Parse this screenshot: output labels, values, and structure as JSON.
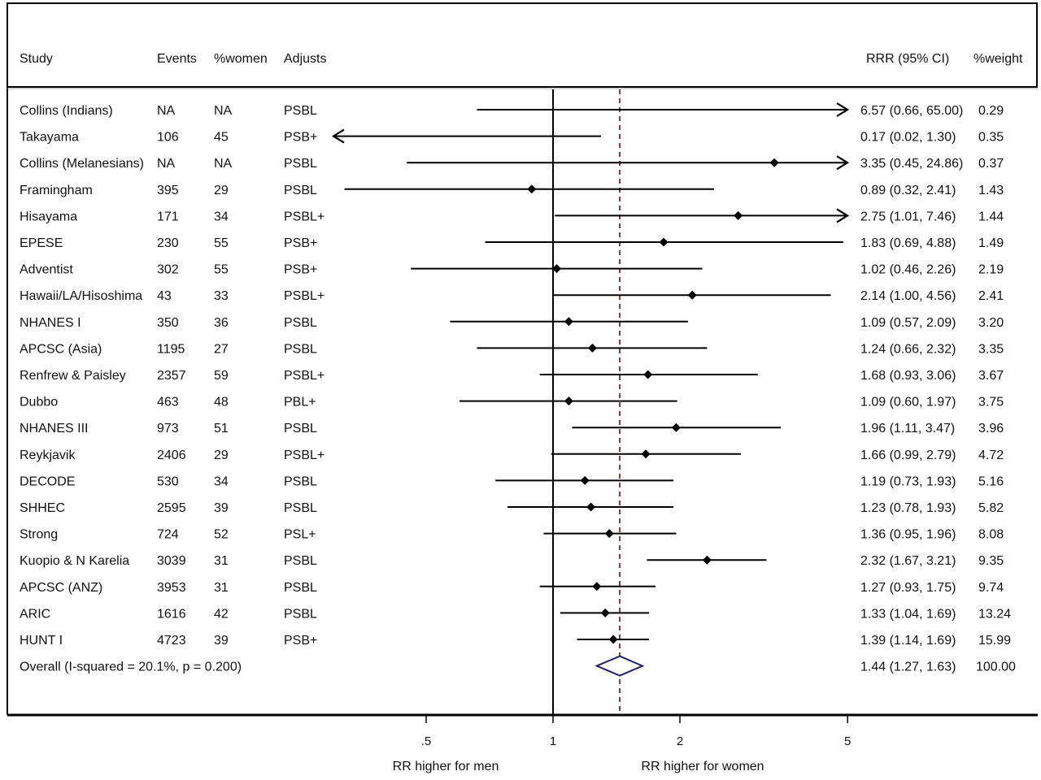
{
  "chart_data": {
    "type": "forest",
    "scale": "log",
    "x_ticks": [
      {
        "value": 0.5,
        "label": ".5"
      },
      {
        "value": 1,
        "label": "1"
      },
      {
        "value": 2,
        "label": "2"
      },
      {
        "value": 5,
        "label": "5"
      }
    ],
    "reference_line": 1,
    "overall_line": 1.44,
    "xlabel_left": "RR higher for men",
    "xlabel_right": "RR higher for women",
    "headers": {
      "study": "Study",
      "events": "Events",
      "women": "%women",
      "adjusts": "Adjusts",
      "rrr": "RRR (95% CI)",
      "weight": "%weight"
    },
    "studies": [
      {
        "study": "Collins (Indians)",
        "events": "NA",
        "women": "NA",
        "adjusts": "PSBL",
        "rr": 6.57,
        "lo": 0.66,
        "hi": 65.0,
        "rrr_text": "6.57 (0.66, 65.00)",
        "weight": "0.29"
      },
      {
        "study": "Takayama",
        "events": "106",
        "women": "45",
        "adjusts": "PSB+",
        "rr": 0.17,
        "lo": 0.02,
        "hi": 1.3,
        "rrr_text": "0.17 (0.02, 1.30)",
        "weight": "0.35"
      },
      {
        "study": "Collins (Melanesians)",
        "events": "NA",
        "women": "NA",
        "adjusts": "PSBL",
        "rr": 3.35,
        "lo": 0.45,
        "hi": 24.86,
        "rrr_text": "3.35 (0.45, 24.86)",
        "weight": "0.37"
      },
      {
        "study": "Framingham",
        "events": "395",
        "women": "29",
        "adjusts": "PSBL",
        "rr": 0.89,
        "lo": 0.32,
        "hi": 2.41,
        "rrr_text": "0.89 (0.32, 2.41)",
        "weight": "1.43"
      },
      {
        "study": "Hisayama",
        "events": "171",
        "women": "34",
        "adjusts": "PSBL+",
        "rr": 2.75,
        "lo": 1.01,
        "hi": 7.46,
        "rrr_text": "2.75 (1.01, 7.46)",
        "weight": "1.44"
      },
      {
        "study": "EPESE",
        "events": "230",
        "women": "55",
        "adjusts": "PSB+",
        "rr": 1.83,
        "lo": 0.69,
        "hi": 4.88,
        "rrr_text": "1.83 (0.69, 4.88)",
        "weight": "1.49"
      },
      {
        "study": "Adventist",
        "events": "302",
        "women": "55",
        "adjusts": "PSB+",
        "rr": 1.02,
        "lo": 0.46,
        "hi": 2.26,
        "rrr_text": "1.02 (0.46, 2.26)",
        "weight": "2.19"
      },
      {
        "study": "Hawaii/LA/Hisoshima",
        "events": "43",
        "women": "33",
        "adjusts": "PSBL+",
        "rr": 2.14,
        "lo": 1.0,
        "hi": 4.56,
        "rrr_text": "2.14 (1.00, 4.56)",
        "weight": "2.41"
      },
      {
        "study": "NHANES I",
        "events": "350",
        "women": "36",
        "adjusts": "PSBL",
        "rr": 1.09,
        "lo": 0.57,
        "hi": 2.09,
        "rrr_text": "1.09 (0.57, 2.09)",
        "weight": "3.20"
      },
      {
        "study": "APCSC (Asia)",
        "events": "1195",
        "women": "27",
        "adjusts": "PSBL",
        "rr": 1.24,
        "lo": 0.66,
        "hi": 2.32,
        "rrr_text": "1.24 (0.66, 2.32)",
        "weight": "3.35"
      },
      {
        "study": "Renfrew & Paisley",
        "events": "2357",
        "women": "59",
        "adjusts": "PSBL+",
        "rr": 1.68,
        "lo": 0.93,
        "hi": 3.06,
        "rrr_text": "1.68 (0.93, 3.06)",
        "weight": "3.67"
      },
      {
        "study": "Dubbo",
        "events": "463",
        "women": "48",
        "adjusts": "PBL+",
        "rr": 1.09,
        "lo": 0.6,
        "hi": 1.97,
        "rrr_text": "1.09 (0.60, 1.97)",
        "weight": "3.75"
      },
      {
        "study": "NHANES III",
        "events": "973",
        "women": "51",
        "adjusts": "PSBL",
        "rr": 1.96,
        "lo": 1.11,
        "hi": 3.47,
        "rrr_text": "1.96 (1.11, 3.47)",
        "weight": "3.96"
      },
      {
        "study": "Reykjavik",
        "events": "2406",
        "women": "29",
        "adjusts": "PSBL+",
        "rr": 1.66,
        "lo": 0.99,
        "hi": 2.79,
        "rrr_text": "1.66 (0.99, 2.79)",
        "weight": "4.72"
      },
      {
        "study": "DECODE",
        "events": "530",
        "women": "34",
        "adjusts": "PSBL",
        "rr": 1.19,
        "lo": 0.73,
        "hi": 1.93,
        "rrr_text": "1.19 (0.73, 1.93)",
        "weight": "5.16"
      },
      {
        "study": "SHHEC",
        "events": "2595",
        "women": "39",
        "adjusts": "PSBL",
        "rr": 1.23,
        "lo": 0.78,
        "hi": 1.93,
        "rrr_text": "1.23 (0.78, 1.93)",
        "weight": "5.82"
      },
      {
        "study": "Strong",
        "events": "724",
        "women": "52",
        "adjusts": "PSL+",
        "rr": 1.36,
        "lo": 0.95,
        "hi": 1.96,
        "rrr_text": "1.36 (0.95, 1.96)",
        "weight": "8.08"
      },
      {
        "study": "Kuopio & N Karelia",
        "events": "3039",
        "women": "31",
        "adjusts": "PSBL",
        "rr": 2.32,
        "lo": 1.67,
        "hi": 3.21,
        "rrr_text": "2.32 (1.67, 3.21)",
        "weight": "9.35"
      },
      {
        "study": "APCSC (ANZ)",
        "events": "3953",
        "women": "31",
        "adjusts": "PSBL",
        "rr": 1.27,
        "lo": 0.93,
        "hi": 1.75,
        "rrr_text": "1.27 (0.93, 1.75)",
        "weight": "9.74"
      },
      {
        "study": "ARIC",
        "events": "1616",
        "women": "42",
        "adjusts": "PSBL",
        "rr": 1.33,
        "lo": 1.04,
        "hi": 1.69,
        "rrr_text": "1.33 (1.04, 1.69)",
        "weight": "13.24"
      },
      {
        "study": "HUNT I",
        "events": "4723",
        "women": "39",
        "adjusts": "PSB+",
        "rr": 1.39,
        "lo": 1.14,
        "hi": 1.69,
        "rrr_text": "1.39 (1.14, 1.69)",
        "weight": "15.99"
      }
    ],
    "overall": {
      "label": "Overall  (I-squared = 20.1%, p = 0.200)",
      "rr": 1.44,
      "lo": 1.27,
      "hi": 1.63,
      "rrr_text": "1.44 (1.27, 1.63)",
      "weight": "100.00"
    },
    "colors": {
      "line": "#000000",
      "overall_diamond": "#1f1f6b",
      "overall_line": "#7a3b3b",
      "frame": "#000000"
    }
  }
}
